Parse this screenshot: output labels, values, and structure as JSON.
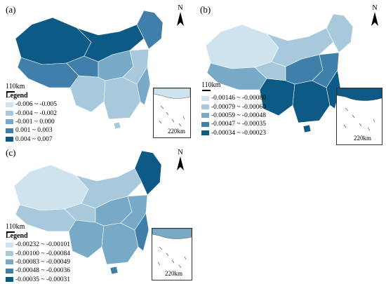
{
  "panels": [
    {
      "label": "(a)",
      "scale_main": "110km",
      "scale_inset": "220km",
      "north": "N",
      "legend_title": "Legend",
      "legend": [
        {
          "text": "-0.006 ~ -0.005",
          "color": "#cfe3ee"
        },
        {
          "text": "-0.004 ~ -0.002",
          "color": "#a8c9dc"
        },
        {
          "text": "-0.001 ~ 0.000",
          "color": "#78a9c6"
        },
        {
          "text": "0.001 ~ 0.003",
          "color": "#3f7fa9"
        },
        {
          "text": "0.004 ~ 0.007",
          "color": "#0e5a87"
        }
      ]
    },
    {
      "label": "(b)",
      "scale_main": "110km",
      "scale_inset": "220km",
      "north": "N",
      "legend_title": "",
      "legend": [
        {
          "text": "-0.00146 ~ -0.00080",
          "color": "#cfe3ee"
        },
        {
          "text": "-0.00079 ~ -0.00060",
          "color": "#a8c9dc"
        },
        {
          "text": "-0.00059 ~ -0.00048",
          "color": "#78a9c6"
        },
        {
          "text": "-0.00047 ~ -0.00035",
          "color": "#3f7fa9"
        },
        {
          "text": "-0.00034 ~ -0.00023",
          "color": "#0e5a87"
        }
      ]
    },
    {
      "label": "(c)",
      "scale_main": "110km",
      "scale_inset": "220km",
      "north": "N",
      "legend_title": "Legend",
      "legend": [
        {
          "text": "-0.00232 ~ -0.00101",
          "color": "#cfe3ee"
        },
        {
          "text": "-0.00100 ~ -0.00084",
          "color": "#a8c9dc"
        },
        {
          "text": "-0.00083 ~ -0.00049",
          "color": "#78a9c6"
        },
        {
          "text": "-0.00048 ~ -0.00036",
          "color": "#3f7fa9"
        },
        {
          "text": "-0.00035 ~ -0.00031",
          "color": "#0e5a87"
        }
      ]
    }
  ],
  "region_classes": {
    "a": {
      "west": 4,
      "tibet": 3,
      "qinghai": 3,
      "north": 4,
      "northeast": 3,
      "central": 2,
      "southwest": 1,
      "south": 1,
      "east": 1,
      "coast": 2,
      "island": 1
    },
    "b": {
      "west": 0,
      "tibet": 2,
      "qinghai": 1,
      "north": 1,
      "northeast": 1,
      "central": 3,
      "southwest": 4,
      "south": 4,
      "east": 3,
      "coast": 4,
      "island": 4
    },
    "c": {
      "west": 0,
      "tibet": 1,
      "qinghai": 1,
      "north": 1,
      "northeast": 4,
      "central": 2,
      "southwest": 2,
      "south": 2,
      "east": 2,
      "coast": 3,
      "island": 3
    }
  }
}
